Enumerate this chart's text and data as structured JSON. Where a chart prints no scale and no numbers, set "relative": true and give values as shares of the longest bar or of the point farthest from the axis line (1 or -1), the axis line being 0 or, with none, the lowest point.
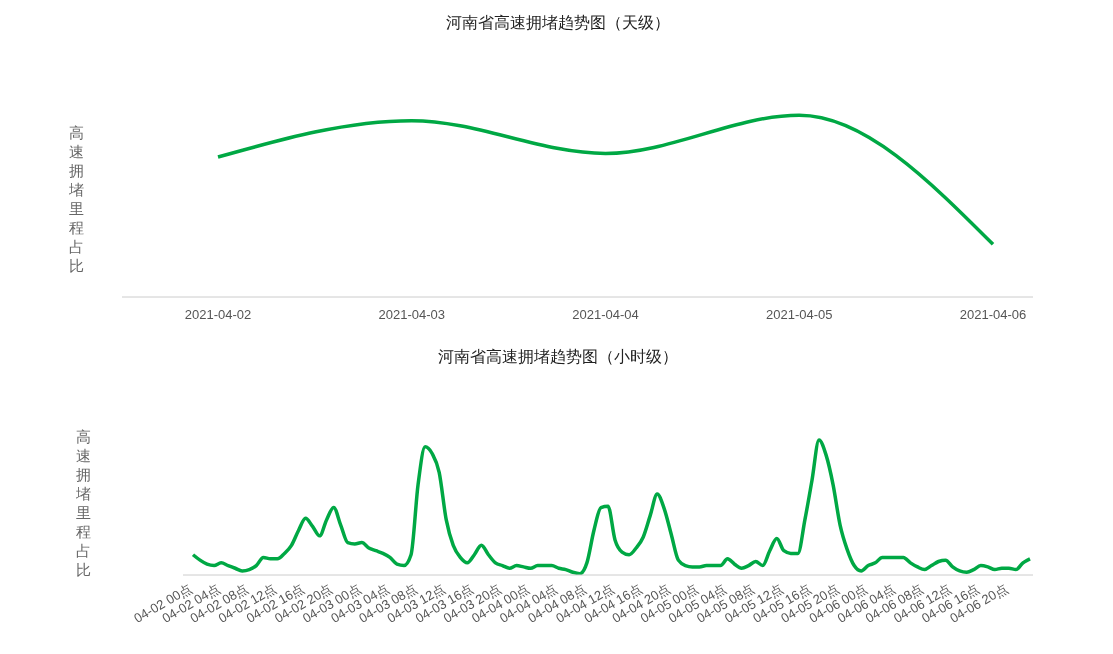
{
  "chart_data": [
    {
      "type": "line",
      "title": "河南省高速拥堵趋势图（天级）",
      "ylabel": "高速拥堵里程占比",
      "relative": true,
      "categories": [
        "2021-04-02",
        "2021-04-03",
        "2021-04-04",
        "2021-04-05",
        "2021-04-06"
      ],
      "series": [
        {
          "color": "#00a844",
          "values": [
            0.77,
            0.97,
            0.79,
            1,
            0.29
          ]
        }
      ]
    },
    {
      "type": "line",
      "title": "河南省高速拥堵趋势图（小时级）",
      "ylabel": "高速拥堵里程占比",
      "relative": true,
      "categories": [
        "04-02 00点",
        null,
        null,
        null,
        "04-02 04点",
        null,
        null,
        null,
        "04-02 08点",
        null,
        null,
        null,
        "04-02 12点",
        null,
        null,
        null,
        "04-02 16点",
        null,
        null,
        null,
        "04-02 20点",
        null,
        null,
        null,
        "04-03 00点",
        null,
        null,
        null,
        "04-03 04点",
        null,
        null,
        null,
        "04-03 08点",
        null,
        null,
        null,
        "04-03 12点",
        null,
        null,
        null,
        "04-03 16点",
        null,
        null,
        null,
        "04-03 20点",
        null,
        null,
        null,
        "04-04 00点",
        null,
        null,
        null,
        "04-04 04点",
        null,
        null,
        null,
        "04-04 08点",
        null,
        null,
        null,
        "04-04 12点",
        null,
        null,
        null,
        "04-04 16点",
        null,
        null,
        null,
        "04-04 20点",
        null,
        null,
        null,
        "04-05 00点",
        null,
        null,
        null,
        "04-05 04点",
        null,
        null,
        null,
        "04-05 08点",
        null,
        null,
        null,
        "04-05 12点",
        null,
        null,
        null,
        "04-05 16点",
        null,
        null,
        null,
        "04-05 20点",
        null,
        null,
        null,
        "04-06 00点",
        null,
        null,
        null,
        "04-06 04点",
        null,
        null,
        null,
        "04-06 08点",
        null,
        null,
        null,
        "04-06 12点",
        null,
        null,
        null,
        "04-06 16点",
        null,
        null,
        null,
        "04-06 20点",
        null,
        null,
        null
      ],
      "series": [
        {
          "color": "#00a844",
          "values": [
            0.15,
            0.11,
            0.08,
            0.07,
            0.09,
            0.07,
            0.05,
            0.03,
            0.04,
            0.07,
            0.13,
            0.12,
            0.12,
            0.16,
            0.22,
            0.33,
            0.42,
            0.36,
            0.29,
            0.41,
            0.5,
            0.37,
            0.24,
            0.23,
            0.24,
            0.2,
            0.18,
            0.16,
            0.13,
            0.08,
            0.07,
            0.15,
            0.67,
            0.95,
            0.9,
            0.76,
            0.41,
            0.22,
            0.13,
            0.09,
            0.15,
            0.22,
            0.15,
            0.09,
            0.07,
            0.05,
            0.07,
            0.06,
            0.05,
            0.07,
            0.07,
            0.07,
            0.05,
            0.04,
            0.02,
            0.01,
            0.09,
            0.33,
            0.5,
            0.51,
            0.26,
            0.17,
            0.15,
            0.2,
            0.28,
            0.44,
            0.6,
            0.49,
            0.3,
            0.11,
            0.07,
            0.06,
            0.06,
            0.07,
            0.07,
            0.07,
            0.12,
            0.08,
            0.05,
            0.07,
            0.1,
            0.07,
            0.18,
            0.27,
            0.18,
            0.16,
            0.16,
            0.41,
            0.7,
            1,
            0.89,
            0.67,
            0.37,
            0.19,
            0.07,
            0.03,
            0.07,
            0.09,
            0.13,
            0.13,
            0.13,
            0.13,
            0.09,
            0.06,
            0.04,
            0.07,
            0.1,
            0.11,
            0.06,
            0.03,
            0.02,
            0.04,
            0.07,
            0.06,
            0.04,
            0.05,
            0.05,
            0.04,
            0.09,
            0.12
          ]
        }
      ]
    }
  ]
}
